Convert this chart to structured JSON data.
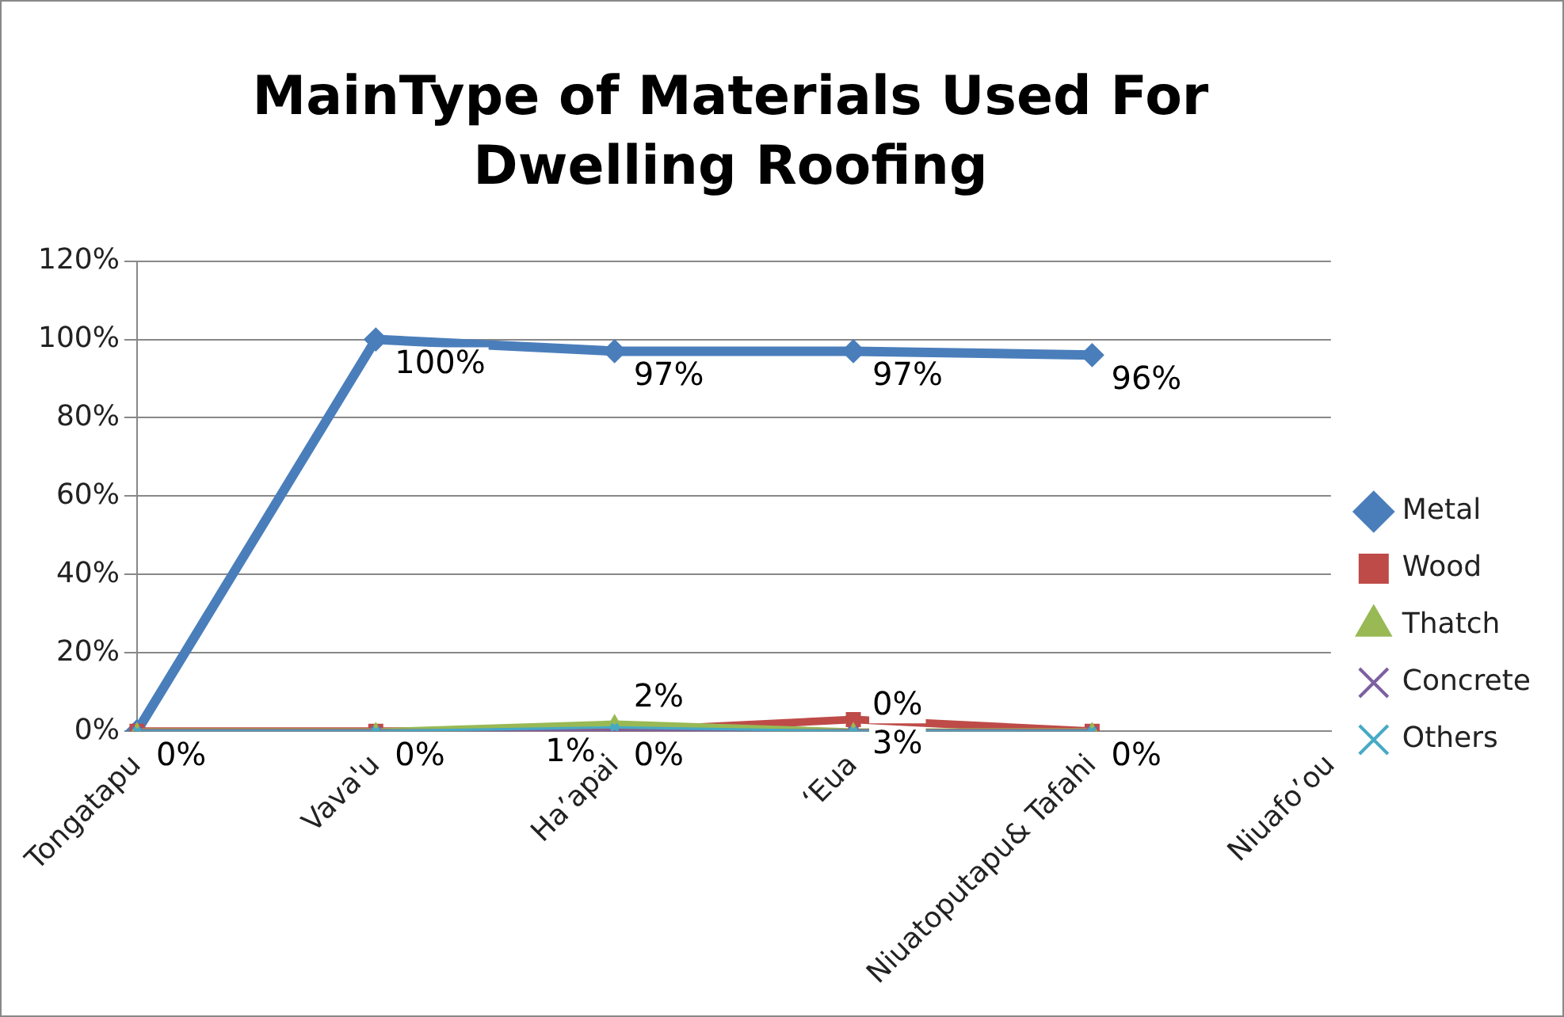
{
  "chart_data": {
    "type": "line",
    "title": "MainType of Materials Used For Dwelling Roofing",
    "categories": [
      "Tongatapu",
      "Vava'u",
      "Ha’apai",
      "‘Eua",
      "Niuatoputapu& Tafahi",
      "Niuafo’ou"
    ],
    "series": [
      {
        "name": "Metal",
        "color": "#4a7ebb",
        "marker": "diamond",
        "values": [
          0,
          100,
          97,
          97,
          96,
          null
        ],
        "value_labels": [
          "0%",
          "100%",
          "97%",
          "97%",
          "96%",
          null
        ]
      },
      {
        "name": "Wood",
        "color": "#be4b48",
        "marker": "square",
        "values": [
          0,
          0,
          0,
          3,
          0,
          null
        ],
        "value_labels": [
          null,
          null,
          "0%",
          "3%",
          null,
          null
        ]
      },
      {
        "name": "Thatch",
        "color": "#98b954",
        "marker": "triangle",
        "values": [
          0,
          0,
          2,
          0,
          0,
          null
        ],
        "value_labels": [
          null,
          null,
          "2%",
          null,
          null,
          null
        ]
      },
      {
        "name": "Concrete",
        "color": "#7d60a0",
        "marker": "cross",
        "values": [
          0,
          0,
          0,
          0,
          0,
          null
        ]
      },
      {
        "name": "Others",
        "color": "#46aac5",
        "marker": "cross",
        "values": [
          0,
          0,
          1,
          0,
          0,
          null
        ],
        "value_labels": [
          null,
          "0%",
          "1%",
          "0%",
          "0%",
          null
        ]
      }
    ],
    "ylim": [
      0,
      120
    ],
    "yticks": [
      {
        "value": 0,
        "label": "0%"
      },
      {
        "value": 20,
        "label": "20%"
      },
      {
        "value": 40,
        "label": "40%"
      },
      {
        "value": 60,
        "label": "60%"
      },
      {
        "value": 80,
        "label": "80%"
      },
      {
        "value": 100,
        "label": "100%"
      },
      {
        "value": 120,
        "label": "120%"
      }
    ],
    "grid": "y",
    "legend": "right"
  }
}
